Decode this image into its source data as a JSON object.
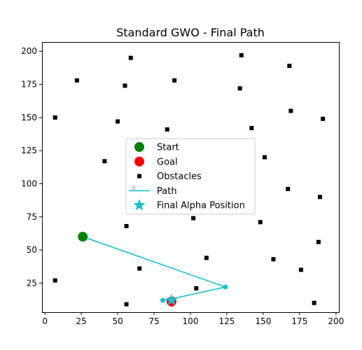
{
  "chart_data": {
    "type": "scatter",
    "title": "Standard GWO - Final Path",
    "xlabel": "",
    "ylabel": "",
    "xlim": [
      -2,
      202
    ],
    "ylim": [
      3,
      207
    ],
    "x_ticks": [
      0,
      25,
      50,
      75,
      100,
      125,
      150,
      175,
      200
    ],
    "y_ticks": [
      25,
      50,
      75,
      100,
      125,
      150,
      175,
      200
    ],
    "grid": false,
    "legend_position": "center",
    "legend": [
      "Start",
      "Goal",
      "Obstacles",
      "Path",
      "Final Alpha Position"
    ],
    "series": [
      {
        "name": "Obstacles",
        "kind": "scatter",
        "marker": "square",
        "color": "#000000",
        "points": [
          [
            59,
            195
          ],
          [
            135,
            197
          ],
          [
            168,
            189
          ],
          [
            22,
            178
          ],
          [
            55,
            174
          ],
          [
            89,
            178
          ],
          [
            134,
            172
          ],
          [
            169,
            155
          ],
          [
            7,
            150
          ],
          [
            50,
            147
          ],
          [
            84,
            141
          ],
          [
            142,
            142
          ],
          [
            191,
            149
          ],
          [
            151,
            120
          ],
          [
            41,
            117
          ],
          [
            61,
            97
          ],
          [
            167,
            96
          ],
          [
            189,
            90
          ],
          [
            56,
            68
          ],
          [
            102,
            74
          ],
          [
            148,
            71
          ],
          [
            188,
            56
          ],
          [
            111,
            44
          ],
          [
            157,
            43
          ],
          [
            65,
            36
          ],
          [
            176,
            35
          ],
          [
            7,
            27
          ],
          [
            104,
            21
          ],
          [
            56,
            9
          ],
          [
            185,
            10
          ]
        ]
      },
      {
        "name": "Path",
        "kind": "line",
        "color": "#17becf",
        "points": [
          [
            26,
            60
          ],
          [
            124,
            22
          ],
          [
            87,
            13
          ],
          [
            81,
            12
          ]
        ]
      },
      {
        "name": "Start",
        "kind": "scatter",
        "marker": "circle",
        "color": "#008000",
        "points": [
          [
            26,
            60
          ]
        ]
      },
      {
        "name": "Goal",
        "kind": "scatter",
        "marker": "circle",
        "color": "#ff0000",
        "points": [
          [
            87,
            11
          ]
        ]
      },
      {
        "name": "Final Alpha Position",
        "kind": "scatter",
        "marker": "star",
        "color": "#17becf",
        "points": [
          [
            87,
            12
          ]
        ]
      }
    ]
  }
}
